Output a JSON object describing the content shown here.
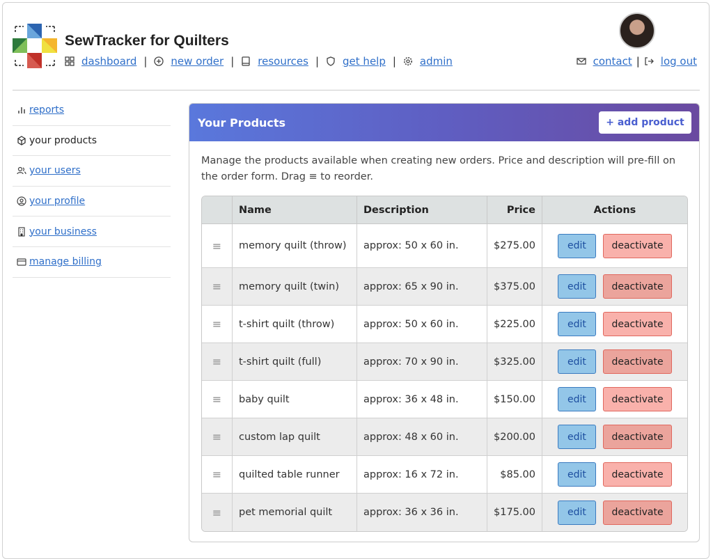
{
  "app": {
    "title": "SewTracker for Quilters"
  },
  "nav": [
    {
      "label": "dashboard",
      "icon": "grid-icon"
    },
    {
      "label": "new order",
      "icon": "plus-circle-icon"
    },
    {
      "label": "resources",
      "icon": "book-icon"
    },
    {
      "label": "get help",
      "icon": "shield-icon"
    },
    {
      "label": "admin",
      "icon": "gear-icon"
    }
  ],
  "right_nav": [
    {
      "label": "contact",
      "icon": "mail-icon"
    },
    {
      "label": "log out",
      "icon": "logout-icon"
    }
  ],
  "sidebar": {
    "items": [
      {
        "label": "reports",
        "icon": "bar-chart-icon",
        "current": false
      },
      {
        "label": "your products",
        "icon": "box-icon",
        "current": true
      },
      {
        "label": "your users",
        "icon": "users-icon",
        "current": false
      },
      {
        "label": "your profile",
        "icon": "user-circle-icon",
        "current": false
      },
      {
        "label": "your business",
        "icon": "building-icon",
        "current": false
      },
      {
        "label": "manage billing",
        "icon": "credit-card-icon",
        "current": false
      }
    ]
  },
  "card": {
    "title": "Your Products",
    "add_label": "+ add product",
    "description": "Manage the products available when creating new orders. Price and description will pre-fill on the order form. Drag ≡ to reorder."
  },
  "table": {
    "headers": [
      "",
      "Name",
      "Description",
      "Price",
      "Actions"
    ],
    "rows": [
      {
        "name": "memory quilt (throw)",
        "description": "approx: 50 x 60 in.",
        "price": "$275.00"
      },
      {
        "name": "memory quilt (twin)",
        "description": "approx: 65 x 90 in.",
        "price": "$375.00"
      },
      {
        "name": "t-shirt quilt (throw)",
        "description": "approx: 50 x 60 in.",
        "price": "$225.00"
      },
      {
        "name": "t-shirt quilt (full)",
        "description": "approx: 70 x 90 in.",
        "price": "$325.00"
      },
      {
        "name": "baby quilt",
        "description": "approx: 36 x 48 in.",
        "price": "$150.00"
      },
      {
        "name": "custom lap quilt",
        "description": "approx: 48 x 60 in.",
        "price": "$200.00"
      },
      {
        "name": "quilted table runner",
        "description": "approx: 16 x 72 in.",
        "price": "$85.00"
      },
      {
        "name": "pet memorial quilt",
        "description": "approx: 36 x 36 in.",
        "price": "$175.00"
      }
    ],
    "edit_label": "edit",
    "deactivate_label": "deactivate",
    "drag_glyph": "≡"
  },
  "colors": {
    "header_gradient_start": "#5a78dc",
    "header_gradient_end": "#6a4aa0",
    "link": "#2f6fc9",
    "edit": "#93c6e8",
    "deactivate": "#f9b1ab"
  }
}
